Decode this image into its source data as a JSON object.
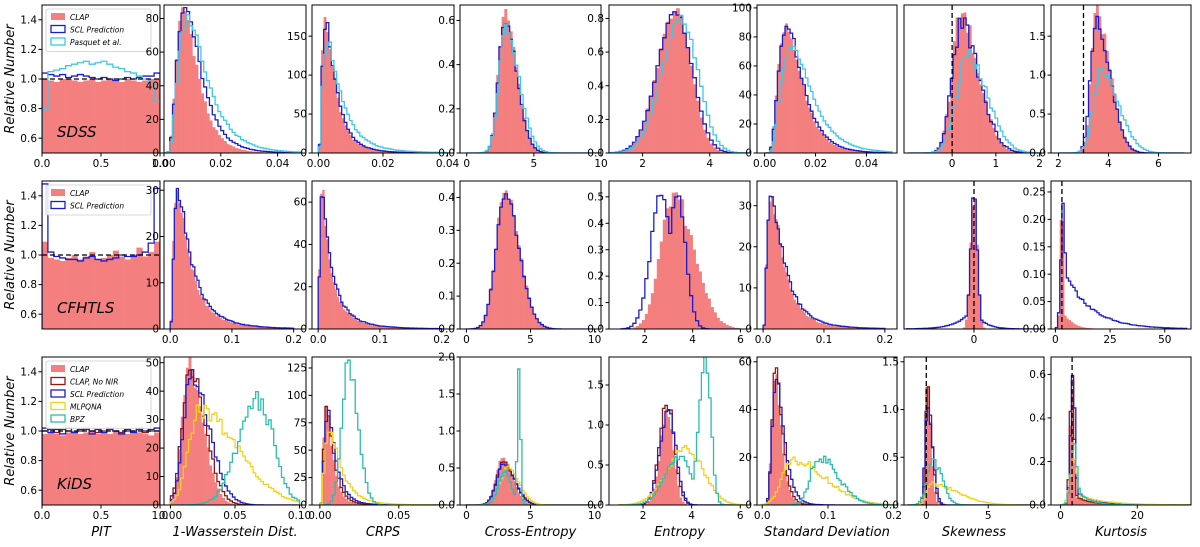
{
  "figure": {
    "ylabel": "Relative Number",
    "rows": [
      "SDSS",
      "CFHTLS",
      "KiDS"
    ],
    "columns": [
      "PIT",
      "1-Wasserstein Dist.",
      "CRPS",
      "Cross-Entropy",
      "Entropy",
      "Standard Deviation",
      "Skewness",
      "Kurtosis"
    ]
  },
  "series_styles": {
    "CLAP": "#f47f7f",
    "CLAP, No NIR": "#8b1a1a",
    "SCL Prediction": "#1c1ccc",
    "Pasquet et al.": "#3cc8e8",
    "MLPQNA": "#f2d21b",
    "BPZ": "#2bbdb0"
  },
  "legends": [
    [
      "CLAP",
      "SCL Prediction",
      "Pasquet et al."
    ],
    [
      "CLAP",
      "SCL Prediction"
    ],
    [
      "CLAP",
      "CLAP, No NIR",
      "SCL Prediction",
      "MLPQNA",
      "BPZ"
    ]
  ],
  "chart_data": [
    {
      "type": "histogram",
      "panel": "SDSS / PIT",
      "xlim": [
        0,
        1
      ],
      "ylim": [
        0.5,
        1.5
      ],
      "xticks": [
        "0.0",
        "0.5",
        "1.0"
      ],
      "yticks": [
        "0.6",
        "0.8",
        "1.0",
        "1.2",
        "1.4"
      ],
      "reference_line": {
        "axis": "y",
        "value": 1.0
      }
    },
    {
      "type": "histogram",
      "panel": "SDSS / 1-Wasserstein Dist.",
      "xlim": [
        0,
        0.05
      ],
      "ylim": [
        0,
        88
      ],
      "xticks": [
        "0.00",
        "0.02",
        "0.04"
      ],
      "yticks": [
        "0",
        "20",
        "40",
        "60",
        "80"
      ]
    },
    {
      "type": "histogram",
      "panel": "SDSS / CRPS",
      "xlim": [
        -0.002,
        0.042
      ],
      "ylim": [
        0,
        190
      ],
      "xticks": [
        "0.00",
        "0.02",
        "0.04"
      ],
      "yticks": [
        "0",
        "50",
        "100",
        "150"
      ]
    },
    {
      "type": "histogram",
      "panel": "SDSS / Cross-Entropy",
      "xlim": [
        -0.5,
        10
      ],
      "ylim": [
        0,
        0.67
      ],
      "xticks": [
        "0",
        "5",
        "10"
      ],
      "yticks": [
        "0.0",
        "0.2",
        "0.4",
        "0.6"
      ]
    },
    {
      "type": "histogram",
      "panel": "SDSS / Entropy",
      "xlim": [
        1,
        5.2
      ],
      "ylim": [
        0,
        0.88
      ],
      "xticks": [
        "2",
        "4"
      ],
      "yticks": [
        "0.0",
        "0.2",
        "0.4",
        "0.6",
        "0.8"
      ]
    },
    {
      "type": "histogram",
      "panel": "SDSS / Standard Deviation",
      "xlim": [
        -0.003,
        0.052
      ],
      "ylim": [
        0,
        102
      ],
      "xticks": [
        "0.00",
        "0.02",
        "0.04"
      ],
      "yticks": [
        "0",
        "20",
        "40",
        "60",
        "80",
        "100"
      ]
    },
    {
      "type": "histogram",
      "panel": "SDSS / Skewness",
      "xlim": [
        -1.1,
        2.1
      ],
      "ylim": [
        0,
        8
      ],
      "xticks": [
        "0",
        "1",
        "2"
      ],
      "yticks": [],
      "reference_line": {
        "axis": "x",
        "value": 0
      }
    },
    {
      "type": "histogram",
      "panel": "SDSS / Kurtosis",
      "xlim": [
        1.7,
        7.3
      ],
      "ylim": [
        0,
        1.9
      ],
      "xticks": [
        "2",
        "4",
        "6"
      ],
      "yticks": [
        "0.0",
        "0.5",
        "1.0",
        "1.5"
      ],
      "reference_line": {
        "axis": "x",
        "value": 3
      }
    },
    {
      "type": "histogram",
      "panel": "CFHTLS / PIT",
      "xlim": [
        0,
        1
      ],
      "ylim": [
        0.5,
        1.5
      ],
      "xticks": [],
      "yticks": [
        "0.6",
        "0.8",
        "1.0",
        "1.2",
        "1.4"
      ],
      "reference_line": {
        "axis": "y",
        "value": 1.0
      }
    },
    {
      "type": "histogram",
      "panel": "CFHTLS / 1-Wasserstein Dist.",
      "xlim": [
        -0.01,
        0.22
      ],
      "ylim": [
        0,
        32
      ],
      "xticks": [
        "0.0",
        "0.1",
        "0.2"
      ],
      "yticks": [
        "0",
        "10",
        "20",
        "30"
      ]
    },
    {
      "type": "histogram",
      "panel": "CFHTLS / CRPS",
      "xlim": [
        -0.01,
        0.22
      ],
      "ylim": [
        0,
        70
      ],
      "xticks": [
        "0.0",
        "0.1",
        "0.2"
      ],
      "yticks": [
        "0",
        "20",
        "40",
        "60"
      ]
    },
    {
      "type": "histogram",
      "panel": "CFHTLS / Cross-Entropy",
      "xlim": [
        -0.5,
        10.5
      ],
      "ylim": [
        0,
        0.45
      ],
      "xticks": [
        "0",
        "5",
        "10"
      ],
      "yticks": [
        "0.0",
        "0.1",
        "0.2",
        "0.3",
        "0.4"
      ]
    },
    {
      "type": "histogram",
      "panel": "CFHTLS / Entropy",
      "xlim": [
        0.5,
        6.4
      ],
      "ylim": [
        0,
        0.56
      ],
      "xticks": [
        "2",
        "4",
        "6"
      ],
      "yticks": [
        "0.0",
        "0.1",
        "0.2",
        "0.3",
        "0.4",
        "0.5"
      ]
    },
    {
      "type": "histogram",
      "panel": "CFHTLS / Standard Deviation",
      "xlim": [
        -0.01,
        0.22
      ],
      "ylim": [
        0,
        36
      ],
      "xticks": [
        "0.0",
        "0.1",
        "0.2"
      ],
      "yticks": [
        "0",
        "10",
        "20",
        "30"
      ]
    },
    {
      "type": "histogram",
      "panel": "CFHTLS / Skewness",
      "xlim": [
        -5.2,
        5.2
      ],
      "ylim": [
        0,
        1
      ],
      "xticks": [
        "0"
      ],
      "yticks": [],
      "reference_line": {
        "axis": "x",
        "value": 0
      }
    },
    {
      "type": "histogram",
      "panel": "CFHTLS / Kurtosis",
      "xlim": [
        -2,
        62
      ],
      "ylim": [
        0,
        0.27
      ],
      "xticks": [
        "0",
        "25",
        "50"
      ],
      "yticks": [
        "0.00",
        "0.05",
        "0.10",
        "0.15",
        "0.20",
        "0.25"
      ],
      "reference_line": {
        "axis": "x",
        "value": 3
      }
    },
    {
      "type": "histogram",
      "panel": "KiDS / PIT",
      "xlim": [
        0,
        1
      ],
      "ylim": [
        0.5,
        1.5
      ],
      "xticks": [
        "0.0",
        "0.5",
        "1.0"
      ],
      "yticks": [
        "0.6",
        "0.8",
        "1.0",
        "1.2",
        "1.4"
      ],
      "reference_line": {
        "axis": "y",
        "value": 1.0
      }
    },
    {
      "type": "histogram",
      "panel": "KiDS / 1-Wasserstein Dist.",
      "xlim": [
        -0.005,
        0.105
      ],
      "ylim": [
        0,
        52
      ],
      "xticks": [
        "0.00",
        "0.05",
        "0.10"
      ],
      "yticks": [
        "0",
        "10",
        "20",
        "30",
        "40",
        "50"
      ]
    },
    {
      "type": "histogram",
      "panel": "KiDS / CRPS",
      "xlim": [
        -0.005,
        0.085
      ],
      "ylim": [
        0,
        135
      ],
      "xticks": [
        "0.00",
        "0.05"
      ],
      "yticks": [
        "0",
        "25",
        "50",
        "75",
        "100",
        "125"
      ]
    },
    {
      "type": "histogram",
      "panel": "KiDS / Cross-Entropy",
      "xlim": [
        -0.5,
        10.5
      ],
      "ylim": [
        0,
        2.0
      ],
      "xticks": [
        "0",
        "5",
        "10"
      ],
      "yticks": [
        "0.0",
        "0.5",
        "1.0",
        "1.5",
        "2.0"
      ]
    },
    {
      "type": "histogram",
      "panel": "KiDS / Entropy",
      "xlim": [
        0.6,
        6.4
      ],
      "ylim": [
        0,
        1.85
      ],
      "xticks": [
        "2",
        "4",
        "6"
      ],
      "yticks": [
        "0.0",
        "0.5",
        "1.0",
        "1.5"
      ]
    },
    {
      "type": "histogram",
      "panel": "KiDS / Standard Deviation",
      "xlim": [
        -0.008,
        0.205
      ],
      "ylim": [
        0,
        62
      ],
      "xticks": [
        "0.0",
        "0.1",
        "0.2"
      ],
      "yticks": [
        "0",
        "20",
        "40",
        "60"
      ]
    },
    {
      "type": "histogram",
      "panel": "KiDS / Skewness",
      "xlim": [
        -1.8,
        9.5
      ],
      "ylim": [
        0,
        1.55
      ],
      "xticks": [
        "0",
        "5"
      ],
      "yticks": [
        "0.0",
        "0.5",
        "1.0",
        "1.5"
      ],
      "reference_line": {
        "axis": "x",
        "value": 0
      }
    },
    {
      "type": "histogram",
      "panel": "KiDS / Kurtosis",
      "xlim": [
        -2.5,
        34
      ],
      "ylim": [
        0,
        0.68
      ],
      "xticks": [
        "0",
        "20"
      ],
      "yticks": [
        "0.0",
        "0.2",
        "0.4",
        "0.6"
      ],
      "reference_line": {
        "axis": "x",
        "value": 3
      }
    }
  ]
}
